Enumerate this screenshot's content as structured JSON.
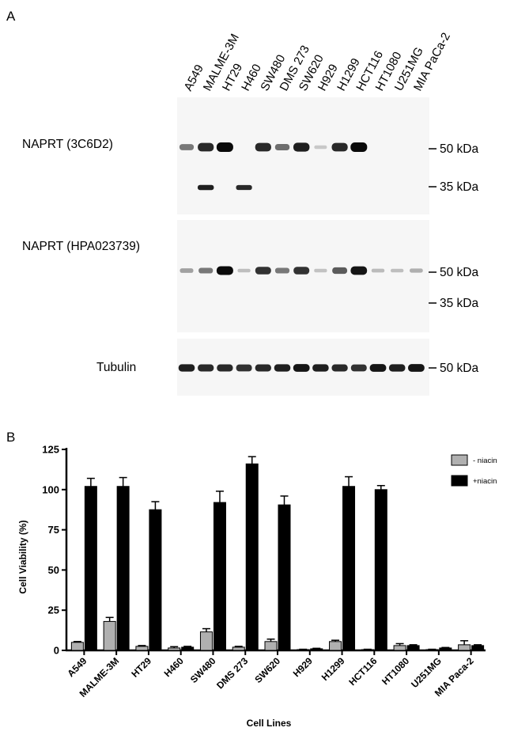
{
  "panel_a": {
    "letter": "A",
    "lanes": [
      "A549",
      "MALME-3M",
      "HT29",
      "H460",
      "SW480",
      "DMS 273",
      "SW620",
      "H929",
      "H1299",
      "HCT116",
      "HT1080",
      "U251MG",
      "MIA PaCa-2"
    ],
    "blots": [
      {
        "antibody": "NAPRT (3C6D2)",
        "markers": [
          "50 kDa",
          "35 kDa"
        ],
        "bands_50": [
          0.45,
          0.85,
          1.0,
          0.0,
          0.85,
          0.5,
          0.9,
          0.05,
          0.85,
          1.0,
          0.0,
          0.0,
          0.0
        ],
        "bands_35": [
          0.0,
          0.9,
          0.0,
          0.85,
          0.0,
          0.0,
          0.0,
          0.0,
          0.0,
          0.0,
          0.0,
          0.0,
          0.0
        ]
      },
      {
        "antibody": "NAPRT (HPA023739)",
        "markers": [
          "50 kDa",
          "35 kDa"
        ],
        "bands_50": [
          0.25,
          0.45,
          1.0,
          0.1,
          0.8,
          0.45,
          0.8,
          0.08,
          0.6,
          0.95,
          0.12,
          0.1,
          0.18
        ]
      },
      {
        "antibody": "Tubulin",
        "markers": [
          "50 kDa"
        ],
        "bands_50": [
          0.9,
          0.85,
          0.85,
          0.8,
          0.85,
          0.9,
          0.95,
          0.9,
          0.85,
          0.8,
          0.95,
          0.9,
          0.95
        ]
      }
    ]
  },
  "panel_b": {
    "letter": "B",
    "chart_data": {
      "type": "bar",
      "categories": [
        "A549",
        "MALME-3M",
        "HT29",
        "H460",
        "SW480",
        "DMS 273",
        "SW620",
        "H929",
        "H1299",
        "HCT116",
        "HT1080",
        "U251MG",
        "MIA Paca-2"
      ],
      "series": [
        {
          "name": "- niacin",
          "color": "#b0b0b0",
          "values": [
            5,
            18,
            2.5,
            1.5,
            11.5,
            2,
            5.5,
            0.5,
            5.5,
            0.5,
            3,
            0.5,
            3.5
          ],
          "errors": [
            0.5,
            2.5,
            0.5,
            0.8,
            2,
            0.5,
            1.5,
            0.2,
            0.8,
            0.2,
            1.2,
            0.2,
            2.5
          ]
        },
        {
          "name": "+niacin",
          "color": "#000000",
          "values": [
            102,
            102,
            87.5,
            2,
            92,
            116,
            90.5,
            1,
            102,
            100,
            3,
            1.5,
            3
          ],
          "errors": [
            5,
            5.5,
            5,
            0.5,
            7,
            4.5,
            5.5,
            0.3,
            6,
            2.5,
            0.5,
            0.3,
            0.5
          ]
        }
      ],
      "xlabel": "Cell Lines",
      "ylabel": "Cell Viability (%)",
      "ylim": [
        0,
        125
      ],
      "yticks": [
        0,
        25,
        50,
        75,
        100,
        125
      ],
      "legend_position": "top-right"
    }
  }
}
